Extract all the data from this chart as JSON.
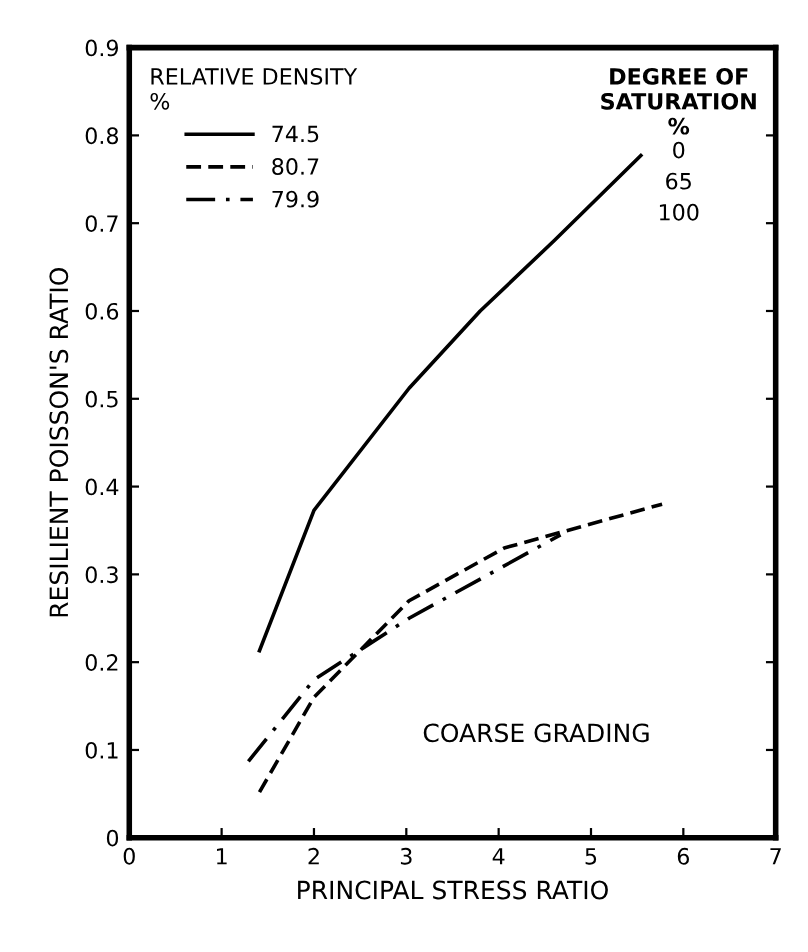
{
  "chart_data": {
    "type": "line",
    "xlabel": "PRINCIPAL STRESS RATIO",
    "ylabel": "RESILIENT POISSON'S RATIO",
    "legend_title": "RELATIVE DENSITY\n%",
    "legend": "top left",
    "grid": false,
    "marker": "none",
    "xlim": [
      0,
      7
    ],
    "xticks": [
      0,
      1,
      2,
      3,
      4,
      5,
      6,
      7
    ],
    "ylim": [
      0,
      0.9
    ],
    "yticks": [
      0,
      0.1,
      0.2,
      0.3,
      0.4,
      0.5,
      0.6,
      0.7,
      0.8,
      0.9
    ],
    "series": [
      {
        "name": "74.5",
        "color": "#000000",
        "line_style": "solid",
        "x": [
          1.41,
          2.0,
          3.03,
          3.8,
          4.6,
          5.54
        ],
        "values": [
          0.213,
          0.373,
          0.512,
          0.6,
          0.68,
          0.777
        ]
      },
      {
        "name": "80.7",
        "color": "#000000",
        "line_style": "dashed",
        "x": [
          1.41,
          2.0,
          3.03,
          4.06,
          5.77
        ],
        "values": [
          0.052,
          0.16,
          0.27,
          0.33,
          0.38
        ]
      },
      {
        "name": "79.9",
        "color": "#000000",
        "line_style": "dashdot",
        "x": [
          1.29,
          2.0,
          3.03,
          4.67
        ],
        "values": [
          0.087,
          0.18,
          0.25,
          0.345
        ]
      }
    ],
    "annotations": [
      "DEGREE OF\nSATURATION\n%",
      "0",
      "65",
      "100",
      "COARSE GRADING"
    ]
  }
}
